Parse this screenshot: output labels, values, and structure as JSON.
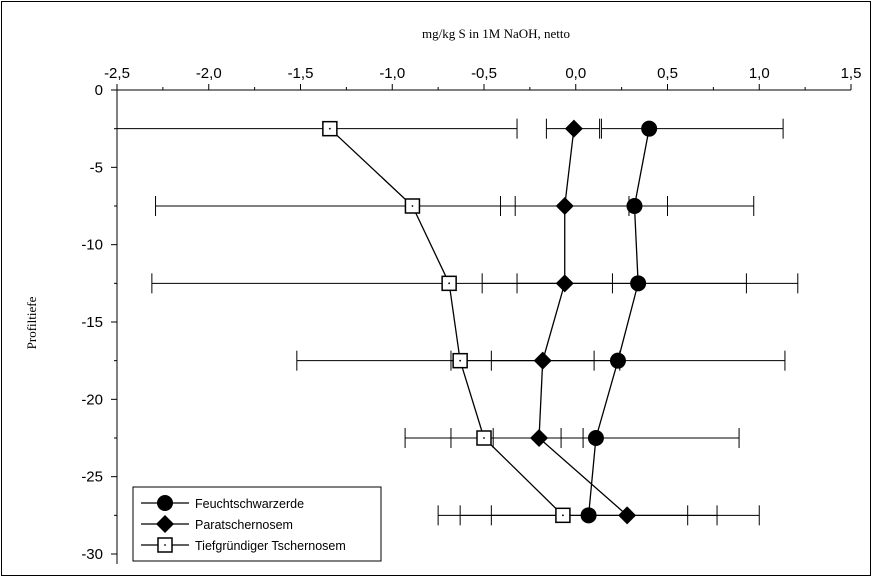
{
  "chart_data": {
    "type": "line",
    "title": "",
    "xlabel": "mg/kg S in 1M NaOH, netto",
    "ylabel": "Profiltiefe",
    "xlim": [
      -2.5,
      1.5
    ],
    "ylim": [
      -30,
      0
    ],
    "x_axis_position": "top",
    "y_ticks": [
      0,
      -5,
      -10,
      -15,
      -20,
      -25,
      -30
    ],
    "y_tick_labels": [
      "0",
      "-5",
      "-10",
      "-15",
      "-20",
      "-25",
      "-30"
    ],
    "x_ticks": [
      -2.5,
      -2.0,
      -1.5,
      -1.0,
      -0.5,
      0.0,
      0.5,
      1.0,
      1.5
    ],
    "x_tick_labels": [
      "-2,5",
      "-2,0",
      "-1,5",
      "-1,0",
      "-0,5",
      "0,0",
      "0,5",
      "1,0",
      "1,5"
    ],
    "grid": false,
    "legend_position": "bottom-left",
    "series": [
      {
        "name": "Feuchtschwarzerde",
        "marker": "circle",
        "color": "#000000",
        "points": [
          {
            "x": 0.4,
            "y": -2.5,
            "xerr_low": 0.14,
            "xerr_high": 1.13
          },
          {
            "x": 0.32,
            "y": -7.5,
            "xerr_low": -0.33,
            "xerr_high": 0.97
          },
          {
            "x": 0.34,
            "y": -12.5,
            "xerr_low": -0.51,
            "xerr_high": 1.21
          },
          {
            "x": 0.23,
            "y": -17.5,
            "xerr_low": -0.68,
            "xerr_high": 1.14
          },
          {
            "x": 0.11,
            "y": -22.5,
            "xerr_low": -0.68,
            "xerr_high": 0.89
          },
          {
            "x": 0.07,
            "y": -27.5,
            "xerr_low": -0.46,
            "xerr_high": 0.61
          }
        ]
      },
      {
        "name": "Paratschernosem",
        "marker": "diamond",
        "color": "#000000",
        "points": [
          {
            "x": -0.01,
            "y": -2.5,
            "xerr_low": -0.16,
            "xerr_high": 0.13
          },
          {
            "x": -0.06,
            "y": -7.5,
            "xerr_low": -0.41,
            "xerr_high": 0.29
          },
          {
            "x": -0.06,
            "y": -12.5,
            "xerr_low": -0.32,
            "xerr_high": 0.2
          },
          {
            "x": -0.18,
            "y": -17.5,
            "xerr_low": -0.46,
            "xerr_high": 0.1
          },
          {
            "x": -0.2,
            "y": -22.5,
            "xerr_low": -0.45,
            "xerr_high": 0.04
          },
          {
            "x": 0.28,
            "y": -27.5,
            "xerr_low": -0.63,
            "xerr_high": 1.0
          }
        ]
      },
      {
        "name": "Tiefgründiger Tschernosem",
        "marker": "square-open",
        "color": "#000000",
        "points": [
          {
            "x": -1.34,
            "y": -2.5,
            "xerr_low": -2.5,
            "xerr_high": -0.32
          },
          {
            "x": -0.89,
            "y": -7.5,
            "xerr_low": -2.29,
            "xerr_high": 0.5
          },
          {
            "x": -0.69,
            "y": -12.5,
            "xerr_low": -2.31,
            "xerr_high": 0.93
          },
          {
            "x": -0.63,
            "y": -17.5,
            "xerr_low": -1.52,
            "xerr_high": 0.24
          },
          {
            "x": -0.5,
            "y": -22.5,
            "xerr_low": -0.93,
            "xerr_high": -0.08
          },
          {
            "x": -0.07,
            "y": -27.5,
            "xerr_low": -0.75,
            "xerr_high": 0.77
          }
        ]
      }
    ]
  }
}
